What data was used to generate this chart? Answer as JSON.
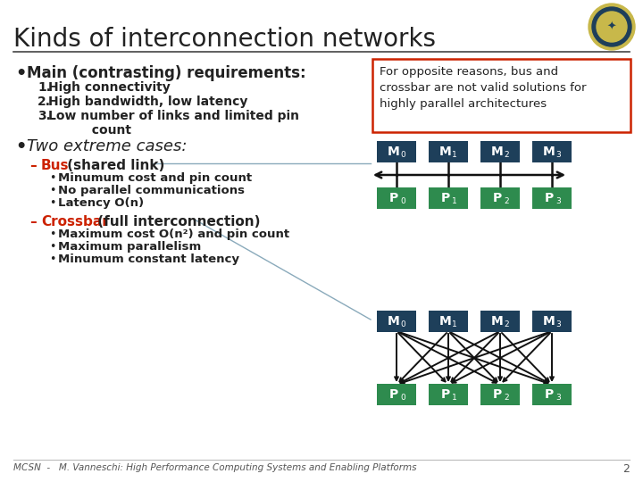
{
  "title": "Kinds of interconnection networks",
  "bg_color": "#ffffff",
  "title_color": "#222222",
  "title_fontsize": 20,
  "separator_color": "#444444",
  "bullet1": "Main (contrasting) requirements:",
  "sub_items1": [
    "High connectivity",
    "High bandwidth, low latency",
    "Low number of links and limited pin\n     count"
  ],
  "bullet2": "Two extreme cases:",
  "bus_label": "Bus",
  "bus_label_color": "#cc2200",
  "bus_rest": " (shared link)",
  "bus_items": [
    "Minumum cost and pin count",
    "No parallel communications",
    "Latency O(n)"
  ],
  "crossbar_label": "Crossbar",
  "crossbar_label_color": "#cc2200",
  "crossbar_rest": " (full interconnection)",
  "crossbar_items": [
    "Maximum cost O(n²) and pin count",
    "Maximum parallelism",
    "Minumum constant latency"
  ],
  "note_text": "For opposite reasons, bus and\ncrossbar are not valid solutions for\nhighly parallel architectures",
  "note_border_color": "#cc2200",
  "note_bg": "#ffffff",
  "note_text_color": "#222222",
  "M_box_color": "#1e3f5a",
  "P_box_color": "#2e8b4e",
  "box_text_color": "#ffffff",
  "arrow_color": "#111111",
  "footer_text": "MCSN  -   M. Vanneschi: High Performance Computing Systems and Enabling Platforms",
  "footer_page": "2",
  "footer_color": "#555555"
}
